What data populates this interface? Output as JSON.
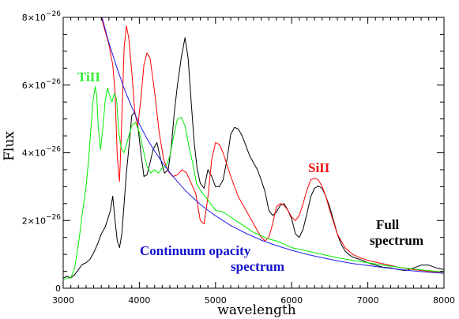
{
  "chart_data": {
    "type": "line",
    "xlabel": "wavelength",
    "ylabel": "Flux",
    "xlim": [
      3000,
      8000
    ],
    "ylim": [
      0,
      8e-26
    ],
    "x_ticks": [
      3000,
      4000,
      5000,
      6000,
      7000,
      8000
    ],
    "x_tick_labels": [
      "3000",
      "4000",
      "5000",
      "6000",
      "7000",
      "8000"
    ],
    "x_minor_step": 100,
    "y_ticks": [
      0,
      2e-26,
      4e-26,
      6e-26,
      8e-26
    ],
    "y_tick_labels": [
      {
        "mantissa": "0",
        "exponent": ""
      },
      {
        "mantissa": "2×10",
        "exponent": "−26"
      },
      {
        "mantissa": "4×10",
        "exponent": "−26"
      },
      {
        "mantissa": "6×10",
        "exponent": "−26"
      },
      {
        "mantissa": "8×10",
        "exponent": "−26"
      }
    ],
    "y_minor_step": 5e-27,
    "grid": false,
    "series": [
      {
        "label_key": "full",
        "color": "#000000",
        "x": [
          3000,
          3050,
          3100,
          3150,
          3200,
          3250,
          3300,
          3350,
          3400,
          3450,
          3500,
          3550,
          3580,
          3620,
          3650,
          3680,
          3710,
          3740,
          3770,
          3800,
          3830,
          3860,
          3900,
          3940,
          3980,
          4020,
          4060,
          4100,
          4140,
          4180,
          4230,
          4280,
          4330,
          4380,
          4420,
          4460,
          4500,
          4550,
          4600,
          4640,
          4680,
          4720,
          4760,
          4800,
          4850,
          4900,
          4950,
          5000,
          5050,
          5100,
          5150,
          5200,
          5250,
          5300,
          5350,
          5400,
          5450,
          5500,
          5550,
          5600,
          5650,
          5700,
          5750,
          5800,
          5850,
          5900,
          5950,
          6000,
          6050,
          6100,
          6150,
          6200,
          6250,
          6300,
          6350,
          6400,
          6450,
          6500,
          6550,
          6600,
          6650,
          6700,
          6750,
          6800,
          6900,
          7000,
          7100,
          7200,
          7300,
          7400,
          7500,
          7600,
          7700,
          7800,
          7900,
          8000
        ],
        "y": [
          3e-27,
          3.5e-27,
          3e-27,
          4e-27,
          5.5e-27,
          7e-27,
          7.5e-27,
          8.5e-27,
          1.05e-26,
          1.3e-26,
          1.6e-26,
          1.8e-26,
          2e-26,
          2.3e-26,
          2.72e-26,
          2e-26,
          1.4e-26,
          1.2e-26,
          1.6e-26,
          2.5e-26,
          3.4e-26,
          4.1e-26,
          5.1e-26,
          5.2e-26,
          4.8e-26,
          4e-26,
          3.3e-26,
          3.35e-26,
          3.7e-26,
          4.1e-26,
          4.3e-26,
          3.8e-26,
          3.4e-26,
          3.5e-26,
          4.2e-26,
          5.2e-26,
          6e-26,
          6.8e-26,
          7.4e-26,
          6.8e-26,
          5.5e-26,
          4.3e-26,
          3.5e-26,
          3.1e-26,
          2.95e-26,
          3.5e-26,
          3.3e-26,
          3e-26,
          3e-26,
          3.2e-26,
          3.8e-26,
          4.55e-26,
          4.75e-26,
          4.7e-26,
          4.5e-26,
          4.2e-26,
          3.9e-26,
          3.7e-26,
          3.5e-26,
          3.2e-26,
          2.85e-26,
          2.3e-26,
          2.15e-26,
          2.25e-26,
          2.45e-26,
          2.5e-26,
          2.3e-26,
          2.05e-26,
          1.6e-26,
          1.5e-26,
          1.75e-26,
          2.2e-26,
          2.7e-26,
          2.95e-26,
          3.02e-26,
          2.95e-26,
          2.7e-26,
          2.4e-26,
          2e-26,
          1.6e-26,
          1.3e-26,
          1.1e-26,
          1e-26,
          9.2e-27,
          8.5e-27,
          7.5e-27,
          6.8e-27,
          6.2e-27,
          6e-27,
          5.5e-27,
          5.2e-27,
          6e-27,
          6.8e-27,
          6.8e-27,
          6e-27,
          5.5e-27
        ]
      },
      {
        "label_key": "siII",
        "color": "#ff0000",
        "x": [
          3500,
          3550,
          3600,
          3650,
          3680,
          3710,
          3740,
          3770,
          3800,
          3830,
          3860,
          3900,
          3940,
          3980,
          4020,
          4060,
          4100,
          4140,
          4200,
          4260,
          4320,
          4380,
          4440,
          4500,
          4560,
          4620,
          4680,
          4740,
          4800,
          4850,
          4900,
          4950,
          5000,
          5050,
          5100,
          5200,
          5300,
          5400,
          5500,
          5600,
          5650,
          5700,
          5750,
          5800,
          5850,
          5900,
          5950,
          6000,
          6050,
          6100,
          6150,
          6200,
          6250,
          6300,
          6350,
          6400,
          6450,
          6500,
          6600,
          6700,
          6800,
          6900,
          7000,
          7200,
          7400,
          7600,
          7800,
          8000
        ],
        "y": [
          8e-26,
          7.6e-26,
          7.2e-26,
          6.6e-26,
          5.8e-26,
          3.9e-26,
          3.15e-26,
          5e-26,
          7.1e-26,
          7.75e-26,
          7.4e-26,
          6.4e-26,
          5.2e-26,
          4.8e-26,
          5.6e-26,
          6.6e-26,
          6.95e-26,
          6.8e-26,
          5.8e-26,
          4.6e-26,
          3.8e-26,
          3.45e-26,
          3.3e-26,
          3.35e-26,
          3.5e-26,
          3.4e-26,
          3.1e-26,
          2.8e-26,
          2e-26,
          1.9e-26,
          2.7e-26,
          3.8e-26,
          4.3e-26,
          4.25e-26,
          4e-26,
          3.3e-26,
          2.7e-26,
          2.3e-26,
          1.9e-26,
          1.5e-26,
          1.4e-26,
          1.5e-26,
          1.9e-26,
          2.4e-26,
          2.5e-26,
          2.45e-26,
          2.3e-26,
          2.1e-26,
          2e-26,
          2.15e-26,
          2.5e-26,
          2.9e-26,
          3.2e-26,
          3.25e-26,
          3.2e-26,
          3e-26,
          2.7e-26,
          2.3e-26,
          1.6e-26,
          1.2e-26,
          1e-26,
          9e-27,
          8.2e-27,
          7.2e-27,
          6.2e-27,
          5.5e-27,
          5e-27,
          4.5e-27
        ]
      },
      {
        "label_key": "tiII",
        "color": "#00ee00",
        "x": [
          3000,
          3050,
          3100,
          3150,
          3200,
          3250,
          3300,
          3330,
          3360,
          3390,
          3420,
          3440,
          3460,
          3490,
          3520,
          3550,
          3580,
          3610,
          3640,
          3670,
          3700,
          3730,
          3760,
          3800,
          3850,
          3900,
          3950,
          4000,
          4050,
          4100,
          4150,
          4200,
          4250,
          4300,
          4350,
          4400,
          4450,
          4500,
          4550,
          4600,
          4650,
          4700,
          4750,
          4800,
          4850,
          4900,
          4950,
          5000,
          5100,
          5200,
          5300,
          5400,
          5500,
          5600,
          5700,
          5800,
          5900,
          6000,
          6200,
          6400,
          6600,
          6800,
          7000,
          7200,
          7400,
          7600,
          7800,
          8000
        ],
        "y": [
          2.5e-27,
          3e-27,
          3e-27,
          6e-27,
          1.3e-26,
          2.2e-26,
          3e-26,
          3.7e-26,
          4.6e-26,
          5.5e-26,
          5.95e-26,
          5.7e-26,
          4.8e-26,
          4.1e-26,
          4.7e-26,
          5.5e-26,
          5.9e-26,
          5.7e-26,
          5.5e-26,
          5.75e-26,
          5.6e-26,
          4.6e-26,
          4.15e-26,
          4e-26,
          4.4e-26,
          4.8e-26,
          4.9e-26,
          4.6e-26,
          4.1e-26,
          3.6e-26,
          3.4e-26,
          3.5e-26,
          3.4e-26,
          3.55e-26,
          3.6e-26,
          3.9e-26,
          4.5e-26,
          5e-26,
          5.05e-26,
          4.8e-26,
          4.2e-26,
          3.7e-26,
          3.1e-26,
          2.9e-26,
          2.75e-26,
          2.6e-26,
          2.45e-26,
          2.3e-26,
          2.25e-26,
          2.1e-26,
          1.95e-26,
          1.8e-26,
          1.65e-26,
          1.55e-26,
          1.45e-26,
          1.4e-26,
          1.3e-26,
          1.2e-26,
          1.1e-26,
          1e-26,
          9e-27,
          8.2e-27,
          7.5e-27,
          6.8e-27,
          6.2e-27,
          5.7e-27,
          5.2e-27,
          4.8e-27
        ]
      },
      {
        "label_key": "continuum",
        "color": "#1e1ee6",
        "x": [
          3510,
          3600,
          3700,
          3800,
          3900,
          4000,
          4100,
          4200,
          4300,
          4400,
          4500,
          4600,
          4700,
          4800,
          4900,
          5000,
          5200,
          5400,
          5600,
          5800,
          6000,
          6200,
          6400,
          6600,
          6800,
          7000,
          7200,
          7400,
          7600,
          7800,
          8000
        ],
        "y": [
          8e-26,
          7.25e-26,
          6.55e-26,
          5.9e-26,
          5.35e-26,
          4.85e-26,
          4.42e-26,
          4.05e-26,
          3.72e-26,
          3.42e-26,
          3.15e-26,
          2.9e-26,
          2.68e-26,
          2.48e-26,
          2.3e-26,
          2.14e-26,
          1.85e-26,
          1.62e-26,
          1.42e-26,
          1.26e-26,
          1.12e-26,
          1e-26,
          9e-27,
          8.1e-27,
          7.3e-27,
          6.7e-27,
          6.1e-27,
          5.6e-27,
          5.1e-27,
          4.7e-27,
          4.4e-27
        ]
      }
    ]
  },
  "annotations": {
    "tiII": {
      "text": "TiII",
      "color": "#33ee33"
    },
    "siII": {
      "text": "SiII",
      "color": "#ee1111"
    },
    "full_line1": {
      "text": "Full",
      "color": "#000000"
    },
    "full_line2": {
      "text": "spectrum",
      "color": "#000000"
    },
    "continuum_line1": {
      "text": "Continuum opacity",
      "color": "#1111cc"
    },
    "continuum_line2": {
      "text": "spectrum",
      "color": "#1111cc"
    }
  }
}
